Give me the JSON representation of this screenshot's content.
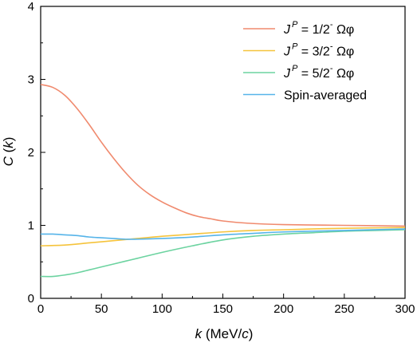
{
  "chart_data": {
    "type": "line",
    "xlabel": "k (MeV/c)",
    "ylabel": "C (k)",
    "xlim": [
      0,
      300
    ],
    "ylim": [
      0,
      4
    ],
    "x_ticks": [
      0,
      50,
      100,
      150,
      200,
      250,
      300
    ],
    "y_ticks": [
      0,
      1,
      2,
      3,
      4
    ],
    "grid": false,
    "legend_position": "top-right",
    "series": [
      {
        "name": "J^P = 1/2- Ωφ",
        "legend": {
          "symbol": "J",
          "superscript": "P",
          "value": " = 1/2",
          "sign": "-",
          "tail": " Ωφ"
        },
        "color": "#f08a6e",
        "x": [
          0,
          10,
          20,
          30,
          40,
          50,
          60,
          70,
          80,
          90,
          100,
          110,
          120,
          130,
          140,
          150,
          170,
          200,
          250,
          300
        ],
        "y": [
          2.93,
          2.89,
          2.78,
          2.6,
          2.38,
          2.14,
          1.92,
          1.72,
          1.55,
          1.42,
          1.32,
          1.24,
          1.17,
          1.12,
          1.09,
          1.06,
          1.03,
          1.01,
          1.0,
          0.99
        ]
      },
      {
        "name": "J^P = 3/2- Ωφ",
        "legend": {
          "symbol": "J",
          "superscript": "P",
          "value": " = 3/2",
          "sign": "-",
          "tail": " Ωφ"
        },
        "color": "#f5c33b",
        "x": [
          0,
          20,
          40,
          60,
          80,
          100,
          125,
          150,
          175,
          200,
          250,
          300
        ],
        "y": [
          0.72,
          0.73,
          0.76,
          0.79,
          0.82,
          0.85,
          0.88,
          0.91,
          0.93,
          0.94,
          0.96,
          0.97
        ]
      },
      {
        "name": "J^P = 5/2- Ωφ",
        "legend": {
          "symbol": "J",
          "superscript": "P",
          "value": " = 5/2",
          "sign": "-",
          "tail": " Ωφ"
        },
        "color": "#6cd3a0",
        "x": [
          0,
          10,
          20,
          30,
          40,
          50,
          60,
          70,
          80,
          100,
          125,
          150,
          175,
          200,
          225,
          250,
          275,
          300
        ],
        "y": [
          0.3,
          0.3,
          0.32,
          0.35,
          0.39,
          0.43,
          0.47,
          0.51,
          0.55,
          0.63,
          0.72,
          0.8,
          0.85,
          0.88,
          0.9,
          0.92,
          0.93,
          0.94
        ]
      },
      {
        "name": "Spin-averaged",
        "legend": {
          "text": "Spin-averaged"
        },
        "color": "#56b4e9",
        "x": [
          0,
          10,
          20,
          30,
          40,
          50,
          60,
          70,
          80,
          100,
          125,
          150,
          175,
          200,
          250,
          300
        ],
        "y": [
          0.88,
          0.88,
          0.87,
          0.86,
          0.84,
          0.83,
          0.82,
          0.81,
          0.81,
          0.82,
          0.84,
          0.87,
          0.89,
          0.91,
          0.93,
          0.95
        ]
      }
    ]
  },
  "axis_labels": {
    "x": {
      "var": "k",
      "unit_open": " (MeV/",
      "unit_var": "c",
      "unit_close": ")"
    },
    "y": {
      "var": "C",
      "arg_open": " (",
      "arg_var": "k",
      "arg_close": ")"
    }
  }
}
